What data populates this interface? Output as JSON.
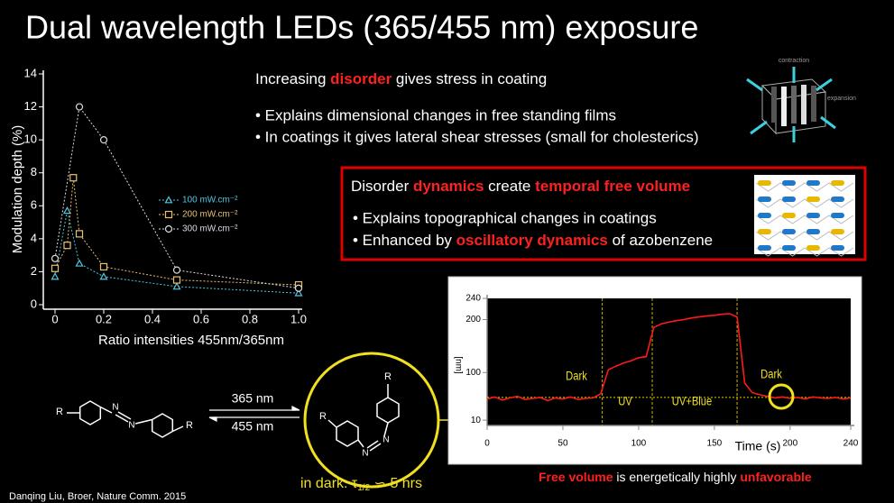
{
  "title": "Dual wavelength LEDs (365/455 nm) exposure",
  "chart_data": [
    {
      "type": "line",
      "xlabel": "Ratio intensities 455nm/365nm",
      "ylabel": "Modulation depth (%)",
      "xlim": [
        0,
        1
      ],
      "xticks": [
        0,
        0.2,
        0.4,
        0.6,
        0.8,
        {
          "value": 1,
          "label": "1.0"
        }
      ],
      "ylim": [
        0,
        14
      ],
      "yticks": [
        0,
        2,
        4,
        6,
        8,
        10,
        12,
        14
      ],
      "legend": "center",
      "series": [
        {
          "name": "100 mW.cm⁻²",
          "color": "#4cc8e0",
          "marker": "triangle",
          "x": [
            0,
            0.05,
            0.1,
            0.2,
            0.5,
            1.0
          ],
          "values": [
            1.7,
            5.7,
            2.5,
            1.7,
            1.1,
            0.7
          ]
        },
        {
          "name": "200 mW.cm⁻²",
          "color": "#e8c070",
          "marker": "square",
          "x": [
            0,
            0.05,
            0.075,
            0.1,
            0.2,
            0.5,
            1.0
          ],
          "values": [
            2.2,
            3.6,
            7.7,
            4.3,
            2.3,
            1.5,
            1.2
          ]
        },
        {
          "name": "300 mW.cm⁻²",
          "color": "#dddddd",
          "marker": "circle",
          "x": [
            0,
            0.1,
            0.2,
            0.5,
            1.0
          ],
          "values": [
            2.8,
            12,
            10,
            2.1,
            1.0
          ]
        }
      ]
    },
    {
      "type": "line",
      "xlabel": "Time (s)",
      "ylabel": "[nm]",
      "xlim": [
        0,
        240
      ],
      "xticks": [
        0,
        50,
        100,
        150,
        200,
        240
      ],
      "ylim": [
        0,
        240
      ],
      "yticks": [
        10,
        100,
        200,
        240
      ],
      "vlines": [
        76,
        109,
        165
      ],
      "hlines": [
        53
      ],
      "annotations": [
        "Dark",
        "UV",
        "UV+Blue",
        "Dark"
      ],
      "series": [
        {
          "color": "#ff1a1a",
          "x": [
            0,
            5,
            10,
            15,
            20,
            25,
            30,
            35,
            40,
            45,
            50,
            55,
            60,
            65,
            70,
            75,
            80,
            85,
            90,
            95,
            100,
            105,
            110,
            115,
            120,
            125,
            130,
            135,
            140,
            145,
            150,
            155,
            160,
            165,
            170,
            175,
            180,
            185,
            190,
            195,
            200,
            205,
            210,
            215,
            220,
            225,
            230,
            235,
            240
          ],
          "values": [
            50,
            54,
            48,
            52,
            55,
            49,
            51,
            53,
            47,
            52,
            50,
            54,
            49,
            51,
            52,
            60,
            105,
            112,
            118,
            122,
            128,
            130,
            185,
            192,
            195,
            198,
            200,
            203,
            205,
            207,
            208,
            210,
            211,
            205,
            80,
            62,
            58,
            55,
            52,
            54,
            51,
            53,
            50,
            54,
            52,
            51,
            53,
            50,
            52
          ]
        }
      ]
    }
  ],
  "intro": {
    "heading": [
      "Increasing ",
      "disorder",
      " gives stress in coating"
    ],
    "bullets": [
      "• Explains dimensional changes in free standing films",
      "• In coatings it gives lateral shear stresses (small for cholesterics)"
    ]
  },
  "box": {
    "heading": [
      "Disorder ",
      "dynamics",
      " create ",
      "temporal free volume"
    ],
    "bullets": [
      "• Explains topographical changes in coatings",
      [
        "• Enhanced by ",
        "oscillatory dynamics",
        " of azobenzene"
      ]
    ]
  },
  "cube": {
    "top": "contraction",
    "side": "expansion"
  },
  "reaction": {
    "r_labels": [
      "R",
      "R",
      "R",
      "R"
    ],
    "n_labels": [
      "N",
      "N",
      "N",
      "N"
    ],
    "forward": "365 nm",
    "back": "455 nm",
    "note": [
      "in dark:  τ",
      "1/2",
      " ∽ 5 hrs"
    ]
  },
  "footer": [
    "Free volume",
    " is energetically highly ",
    "unfavorable"
  ],
  "citation": "Danqing Liu, Broer, Nature Comm. 2015"
}
